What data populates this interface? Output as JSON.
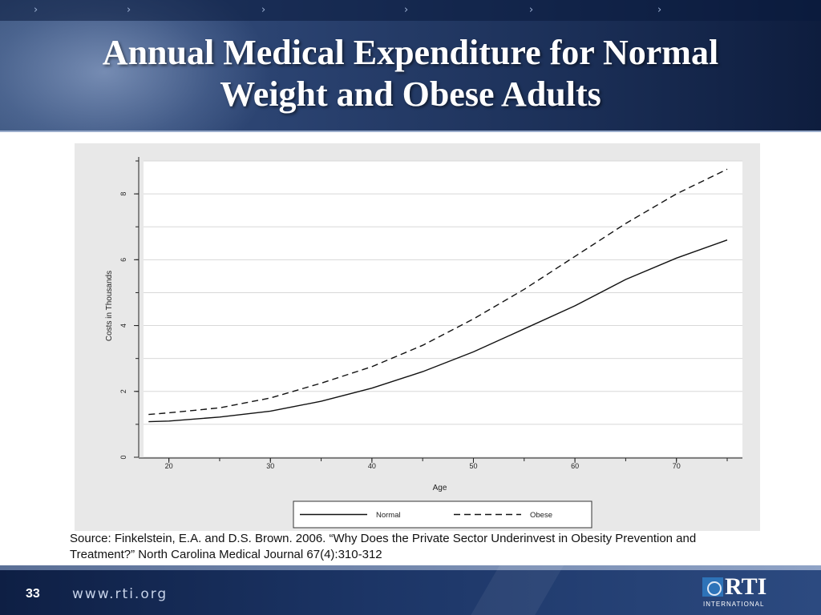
{
  "slide": {
    "title_line1": "Annual Medical Expenditure for Normal",
    "title_line2": "Weight and Obese Adults",
    "source_line1": "Source: Finkelstein, E.A. and D.S. Brown. 2006. “Why Does the Private Sector Underinvest in Obesity Prevention and",
    "source_line2": "Treatment?” North Carolina Medical Journal 67(4):310-312",
    "slide_number": "33",
    "website": "www.rti.org",
    "logo_text": "RTI",
    "logo_subtext": "INTERNATIONAL"
  },
  "chart_data": {
    "type": "line",
    "title": "",
    "xlabel": "Age",
    "ylabel": "Costs in Thousands",
    "xlim": [
      17.5,
      76.5
    ],
    "ylim": [
      0,
      9
    ],
    "x_ticks": [
      20,
      30,
      40,
      50,
      60,
      70
    ],
    "y_ticks": [
      0,
      2,
      4,
      6,
      8
    ],
    "grid": true,
    "legend_position": "bottom",
    "colors": {
      "line": "#111111",
      "plot_bg": "#ffffff",
      "frame_bg": "#e8e8e8",
      "grid": "#d8d8d8"
    },
    "series": [
      {
        "name": "Normal",
        "style": "solid",
        "x": [
          18,
          20,
          25,
          30,
          35,
          40,
          45,
          50,
          55,
          60,
          65,
          70,
          75
        ],
        "y": [
          1.08,
          1.1,
          1.22,
          1.4,
          1.7,
          2.1,
          2.6,
          3.2,
          3.9,
          4.6,
          5.4,
          6.05,
          6.6
        ]
      },
      {
        "name": "Obese",
        "style": "dashed",
        "x": [
          18,
          20,
          25,
          30,
          35,
          40,
          45,
          50,
          55,
          60,
          65,
          70,
          75
        ],
        "y": [
          1.3,
          1.35,
          1.5,
          1.8,
          2.25,
          2.75,
          3.4,
          4.2,
          5.1,
          6.1,
          7.1,
          8.0,
          8.75
        ]
      }
    ]
  }
}
